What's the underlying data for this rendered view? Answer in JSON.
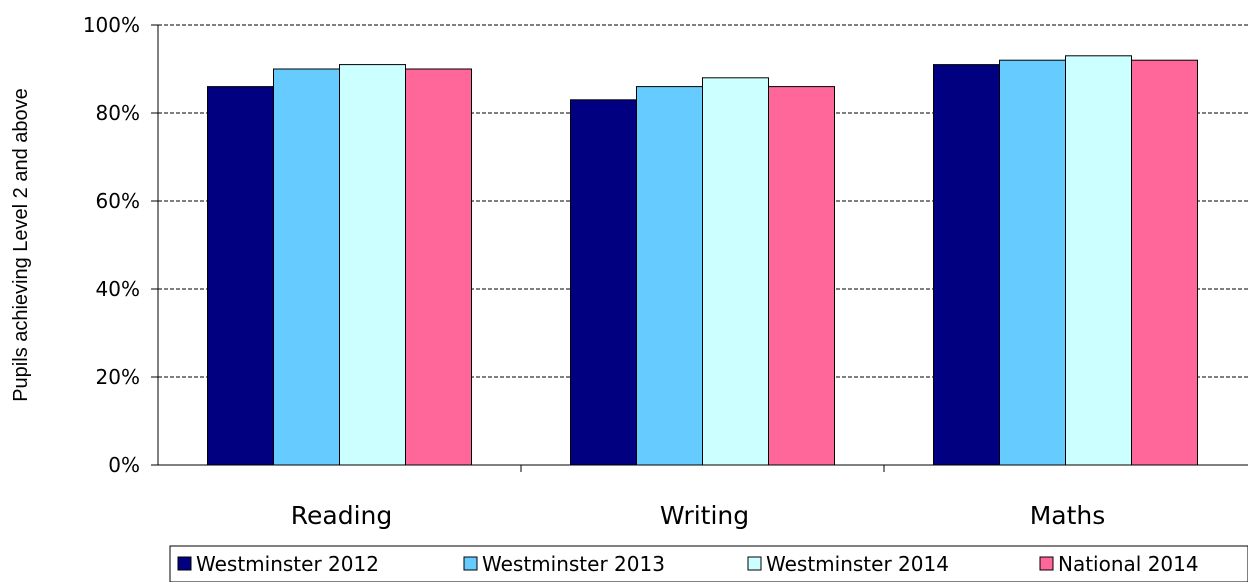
{
  "chart_data": {
    "type": "bar",
    "title": "",
    "xlabel": "",
    "ylabel": "Pupils achieving Level 2 and above",
    "categories": [
      "Reading",
      "Writing",
      "Maths"
    ],
    "yticks": [
      "0%",
      "20%",
      "40%",
      "60%",
      "80%",
      "100%"
    ],
    "ylim": [
      0,
      100
    ],
    "grid": true,
    "legend_position": "bottom",
    "series": [
      {
        "name": "Westminster 2012",
        "color": "#000080",
        "values": [
          86,
          83,
          91
        ]
      },
      {
        "name": "Westminster 2013",
        "color": "#66CCFF",
        "values": [
          90,
          86,
          92
        ]
      },
      {
        "name": "Westminster 2014",
        "color": "#CCFFFF",
        "values": [
          91,
          88,
          93
        ]
      },
      {
        "name": "National 2014",
        "color": "#FF6699",
        "values": [
          90,
          86,
          92
        ]
      }
    ]
  }
}
